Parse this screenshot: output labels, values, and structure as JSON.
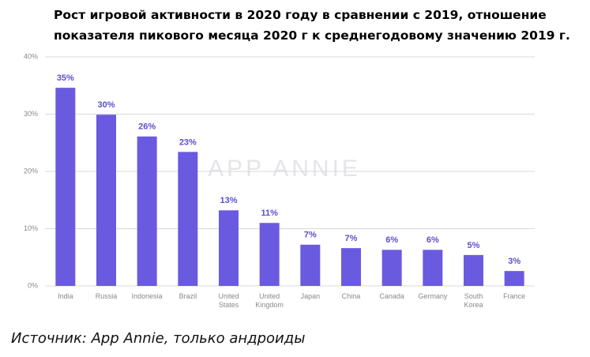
{
  "chart_data": {
    "type": "bar",
    "title": "Рост игровой активности в 2020 году в сравнении с 2019, отношение показателя пикового месяца 2020 г к среднегодовому значению 2019 г.",
    "watermark": "APP ANNIE",
    "source": "Источник: App Annie, только андроиды",
    "categories": [
      "India",
      "Russia",
      "Indonesia",
      "Brazil",
      "United States",
      "United Kingdom",
      "Japan",
      "China",
      "Canada",
      "Germany",
      "South Korea",
      "France"
    ],
    "values": [
      34.6,
      29.9,
      26.1,
      23.4,
      13.2,
      11.0,
      7.2,
      6.6,
      6.3,
      6.3,
      5.4,
      2.6
    ],
    "value_labels": [
      "35%",
      "30%",
      "26%",
      "23%",
      "13%",
      "11%",
      "7%",
      "7%",
      "6%",
      "6%",
      "5%",
      "3%"
    ],
    "color": "#6a5ae0",
    "ylim": [
      0,
      40
    ],
    "yticks": [
      {
        "value": 0,
        "label": "0%"
      },
      {
        "value": 10,
        "label": "10%"
      },
      {
        "value": 20,
        "label": "20%"
      },
      {
        "value": 30,
        "label": "30%"
      },
      {
        "value": 40,
        "label": "40%"
      }
    ],
    "grid": true
  }
}
